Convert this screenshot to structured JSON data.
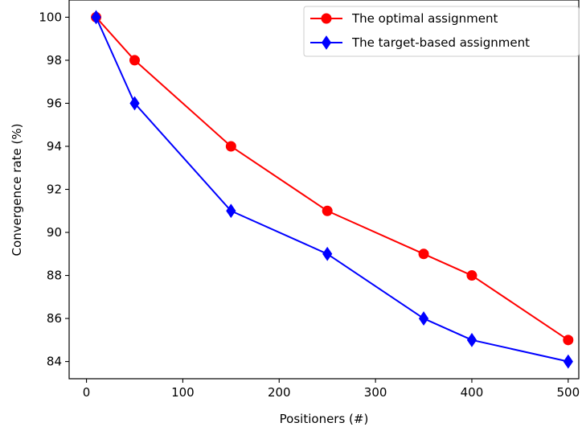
{
  "chart_data": {
    "type": "line",
    "title": "",
    "xlabel": "Positioners (#)",
    "ylabel": "Convergence rate (%)",
    "xlim": [
      -18,
      511
    ],
    "ylim": [
      83.2,
      100.8
    ],
    "xticks": [
      0,
      100,
      200,
      300,
      400,
      500
    ],
    "yticks": [
      84,
      86,
      88,
      90,
      92,
      94,
      96,
      98,
      100
    ],
    "grid": false,
    "legend_position": "top-right",
    "series": [
      {
        "name": "The optimal assignment",
        "color": "#ff0000",
        "marker": "circle",
        "x": [
          10,
          50,
          150,
          250,
          350,
          400,
          500
        ],
        "y": [
          100,
          98,
          94,
          91,
          89,
          88,
          85
        ]
      },
      {
        "name": "The target-based assignment",
        "color": "#0000ff",
        "marker": "diamond",
        "x": [
          10,
          50,
          150,
          250,
          350,
          400,
          500
        ],
        "y": [
          100,
          96,
          91,
          89,
          86,
          85,
          84
        ]
      }
    ]
  }
}
